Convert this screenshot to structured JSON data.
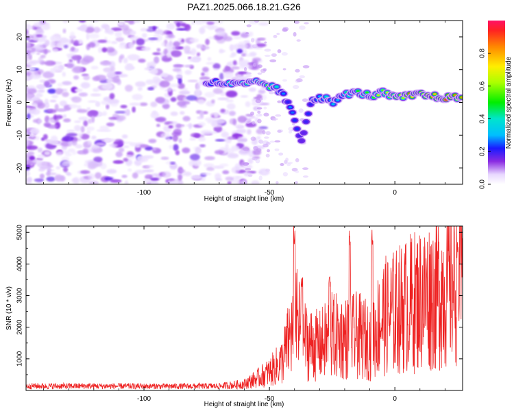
{
  "title": "PAZ1.2025.066.18.21.G26",
  "chart_data": [
    {
      "type": "heatmap",
      "xlabel": "Height of straight line (km)",
      "ylabel": "Frequency (Hz)",
      "xlim": [
        -147,
        27
      ],
      "ylim": [
        -25,
        25
      ],
      "x_ticks": [
        -100,
        -50,
        0
      ],
      "y_ticks": [
        -20,
        -10,
        0,
        10,
        20
      ],
      "x_tick_labels": [
        "-100",
        "-50",
        "0"
      ],
      "y_tick_labels": [
        "-20",
        "-10",
        "0",
        "10",
        "20"
      ],
      "colorbar": {
        "label": "Normalized spectral amplitude",
        "range": [
          0,
          1
        ],
        "ticks": [
          "0.0",
          "0.2",
          "0.4",
          "0.6",
          "0.8"
        ],
        "tick_values": [
          0.0,
          0.2,
          0.4,
          0.6,
          0.8
        ],
        "colormap": "rainbow"
      },
      "signal_track": [
        {
          "x": -75,
          "y": 6.0,
          "a": 0.3
        },
        {
          "x": -70,
          "y": 6.0,
          "a": 0.35
        },
        {
          "x": -65,
          "y": 5.5,
          "a": 0.4
        },
        {
          "x": -60,
          "y": 5.5,
          "a": 0.45
        },
        {
          "x": -56,
          "y": 6.0,
          "a": 0.5
        },
        {
          "x": -53,
          "y": 6.0,
          "a": 0.55
        },
        {
          "x": -50,
          "y": 5.0,
          "a": 0.5
        },
        {
          "x": -47,
          "y": 4.0,
          "a": 0.4
        },
        {
          "x": -45,
          "y": 3.0,
          "a": 0.3
        },
        {
          "x": -43,
          "y": 0.0,
          "a": 0.25
        },
        {
          "x": -41,
          "y": -3.0,
          "a": 0.25
        },
        {
          "x": -40,
          "y": -5.5,
          "a": 0.25
        },
        {
          "x": -39,
          "y": -8.0,
          "a": 0.25
        },
        {
          "x": -38,
          "y": -10.0,
          "a": 0.2
        },
        {
          "x": -37,
          "y": -12.0,
          "a": 0.2
        },
        {
          "x": -35,
          "y": -4.0,
          "a": 0.2
        },
        {
          "x": -33,
          "y": 1.0,
          "a": 0.3
        },
        {
          "x": -30,
          "y": 1.5,
          "a": 0.35
        },
        {
          "x": -27,
          "y": 1.0,
          "a": 0.35
        },
        {
          "x": -24,
          "y": 0.0,
          "a": 0.3
        },
        {
          "x": -20,
          "y": 2.5,
          "a": 0.4
        },
        {
          "x": -16,
          "y": 3.0,
          "a": 0.45
        },
        {
          "x": -12,
          "y": 2.5,
          "a": 0.5
        },
        {
          "x": -8,
          "y": 2.0,
          "a": 0.55
        },
        {
          "x": -5,
          "y": 3.0,
          "a": 0.6
        },
        {
          "x": -2,
          "y": 2.0,
          "a": 0.7
        },
        {
          "x": 2,
          "y": 1.5,
          "a": 0.8
        },
        {
          "x": 6,
          "y": 2.0,
          "a": 0.85
        },
        {
          "x": 10,
          "y": 2.5,
          "a": 0.95
        },
        {
          "x": 14,
          "y": 2.0,
          "a": 0.9
        },
        {
          "x": 18,
          "y": 1.5,
          "a": 0.95
        },
        {
          "x": 22,
          "y": 1.5,
          "a": 0.9
        },
        {
          "x": 26,
          "y": 1.5,
          "a": 0.85
        }
      ]
    },
    {
      "type": "line",
      "xlabel": "Height of straight line (km)",
      "ylabel": "SNR (10 * v/v)",
      "xlim": [
        -147,
        27
      ],
      "ylim": [
        0,
        5200
      ],
      "x_ticks": [
        -100,
        -50,
        0
      ],
      "y_ticks": [
        1000,
        2000,
        3000,
        4000,
        5000
      ],
      "x_tick_labels": [
        "-100",
        "-50",
        "0"
      ],
      "y_tick_labels": [
        "1000",
        "2000",
        "3000",
        "4000",
        "5000"
      ],
      "series_color": "#ee2222",
      "envelope": [
        {
          "x": -147,
          "y": 150
        },
        {
          "x": -120,
          "y": 150
        },
        {
          "x": -90,
          "y": 140
        },
        {
          "x": -70,
          "y": 150
        },
        {
          "x": -60,
          "y": 250
        },
        {
          "x": -55,
          "y": 450
        },
        {
          "x": -50,
          "y": 700
        },
        {
          "x": -45,
          "y": 1100
        },
        {
          "x": -42,
          "y": 2000
        },
        {
          "x": -39,
          "y": 2600
        },
        {
          "x": -35,
          "y": 1800
        },
        {
          "x": -30,
          "y": 1700
        },
        {
          "x": -25,
          "y": 2100
        },
        {
          "x": -20,
          "y": 2000
        },
        {
          "x": -15,
          "y": 2100
        },
        {
          "x": -10,
          "y": 1900
        },
        {
          "x": -5,
          "y": 2800
        },
        {
          "x": 0,
          "y": 3000
        },
        {
          "x": 5,
          "y": 3300
        },
        {
          "x": 10,
          "y": 3500
        },
        {
          "x": 15,
          "y": 3700
        },
        {
          "x": 20,
          "y": 4000
        },
        {
          "x": 25,
          "y": 4200
        },
        {
          "x": 27,
          "y": 4300
        }
      ],
      "spikes": [
        {
          "x": -40,
          "y": 5100
        },
        {
          "x": -37,
          "y": 3500
        },
        {
          "x": -26,
          "y": 3600
        },
        {
          "x": -18,
          "y": 5050
        },
        {
          "x": -9,
          "y": 5100
        },
        {
          "x": 25,
          "y": 4650
        }
      ]
    }
  ]
}
